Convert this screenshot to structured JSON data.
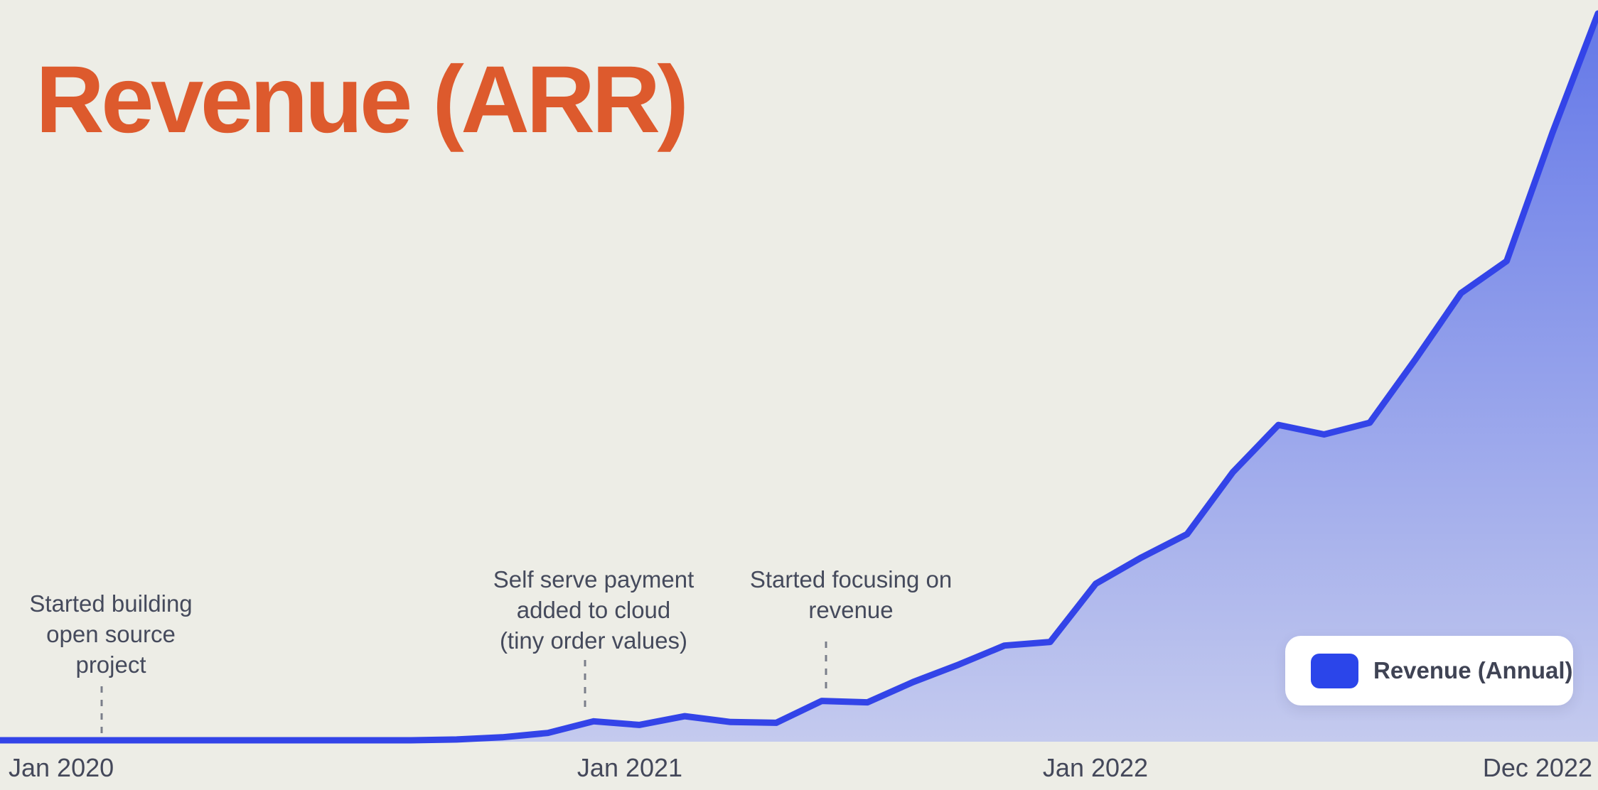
{
  "title": "Revenue (ARR)",
  "colors": {
    "background": "#EDEDE6",
    "title_orange": "#DD5A2D",
    "line_blue": "#3344E8",
    "area_fill_top": "#6478E8",
    "area_fill_bottom": "#C4CAEE",
    "legend_swatch_blue": "#2B45EA",
    "annotation_text": "#454A5C",
    "axis_text": "#44485A",
    "dashed_connector": "#7A7E8A"
  },
  "annotations": [
    {
      "text": "Started building\nopen source\nproject"
    },
    {
      "text": "Self serve payment\nadded to cloud\n(tiny order values)"
    },
    {
      "text": "Started focusing on\nrevenue"
    }
  ],
  "x_axis": {
    "labels": [
      "Jan 2020",
      "Jan 2021",
      "Jan 2022",
      "Dec 2022"
    ]
  },
  "legend": {
    "label": "Revenue (Annual)"
  },
  "chart_data": {
    "type": "area",
    "title": "Revenue (ARR)",
    "x": [
      "Jan 2020",
      "Feb 2020",
      "Mar 2020",
      "Apr 2020",
      "May 2020",
      "Jun 2020",
      "Jul 2020",
      "Aug 2020",
      "Sep 2020",
      "Oct 2020",
      "Nov 2020",
      "Dec 2020",
      "Jan 2021",
      "Feb 2021",
      "Mar 2021",
      "Apr 2021",
      "May 2021",
      "Jun 2021",
      "Jul 2021",
      "Aug 2021",
      "Sep 2021",
      "Oct 2021",
      "Nov 2021",
      "Dec 2021",
      "Jan 2022",
      "Feb 2022",
      "Mar 2022",
      "Apr 2022",
      "May 2022",
      "Jun 2022",
      "Jul 2022",
      "Aug 2022",
      "Sep 2022",
      "Oct 2022",
      "Nov 2022",
      "Dec 2022"
    ],
    "series": [
      {
        "name": "Revenue (Annual)",
        "values": [
          0.2,
          0.2,
          0.2,
          0.2,
          0.2,
          0.2,
          0.2,
          0.2,
          0.2,
          0.2,
          0.3,
          0.6,
          1.2,
          2.8,
          2.3,
          3.5,
          2.7,
          2.6,
          5.6,
          5.4,
          8.2,
          10.6,
          13.2,
          13.7,
          21.7,
          25.3,
          28.5,
          37,
          43.5,
          42.2,
          43.8,
          52.5,
          61.6,
          66,
          83.6,
          100
        ]
      }
    ],
    "x_tick_labels": [
      "Jan 2020",
      "Jan 2021",
      "Jan 2022",
      "Dec 2022"
    ],
    "ylabel": "",
    "xlabel": "",
    "ylim": [
      0,
      100
    ],
    "y_unit": "relative revenue (no y-axis shown, values normalized to peak = 100)",
    "grid": false,
    "legend_position": "bottom-right",
    "annotations": [
      {
        "text": "Started building open source project",
        "anchor_x": "Mar 2020"
      },
      {
        "text": "Self serve payment added to cloud (tiny order values)",
        "anchor_x": "Feb 2021"
      },
      {
        "text": "Started focusing on revenue",
        "anchor_x": "Jul 2021"
      }
    ]
  }
}
